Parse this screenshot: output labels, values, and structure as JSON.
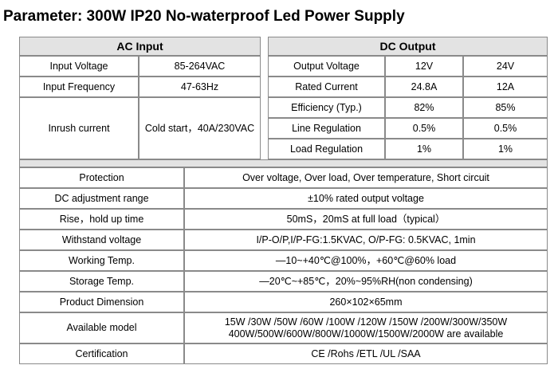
{
  "title": "Parameter: 300W IP20 No-waterproof Led Power Supply",
  "ac_input": {
    "header": "AC Input",
    "rows": [
      {
        "label": "Input Voltage",
        "value": "85-264VAC"
      },
      {
        "label": "Input Frequency",
        "value": "47-63Hz"
      },
      {
        "label": "Inrush current",
        "value": "Cold start，40A/230VAC"
      }
    ]
  },
  "dc_output": {
    "header": "DC Output",
    "rows": [
      {
        "label": "Output Voltage",
        "v12": "12V",
        "v24": "24V"
      },
      {
        "label": "Rated Current",
        "v12": "24.8A",
        "v24": "12A"
      },
      {
        "label": "Efficiency (Typ.)",
        "v12": "82%",
        "v24": "85%"
      },
      {
        "label": "Line Regulation",
        "v12": "0.5%",
        "v24": "0.5%"
      },
      {
        "label": "Load Regulation",
        "v12": "1%",
        "v24": "1%"
      }
    ]
  },
  "specs": [
    {
      "label": "Protection",
      "value": "Over voltage, Over load, Over temperature, Short circuit"
    },
    {
      "label": "DC adjustment range",
      "value": "±10% rated output voltage"
    },
    {
      "label": "Rise，hold up time",
      "value": "50mS，20mS at full load（typical）"
    },
    {
      "label": "Withstand voltage",
      "value": "I/P-O/P,I/P-FG:1.5KVAC, O/P-FG: 0.5KVAC, 1min"
    },
    {
      "label": "Working Temp.",
      "value": "—10~+40℃@100%，+60℃@60% load"
    },
    {
      "label": "Storage Temp.",
      "value": "—20℃~+85℃，20%~95%RH(non condensing)"
    },
    {
      "label": "Product Dimension",
      "value": "260×102×65mm"
    },
    {
      "label": "Available model",
      "value_line1": "15W /30W /50W /60W /100W /120W /150W /200W/300W/350W",
      "value_line2": "400W/500W/600W/800W/1000W/1500W/2000W  are available"
    },
    {
      "label": "Certification",
      "value": "CE /Rohs /ETL /UL /SAA"
    }
  ],
  "colors": {
    "header_bg": "#e3e3e3",
    "border": "#8a8a8a"
  }
}
